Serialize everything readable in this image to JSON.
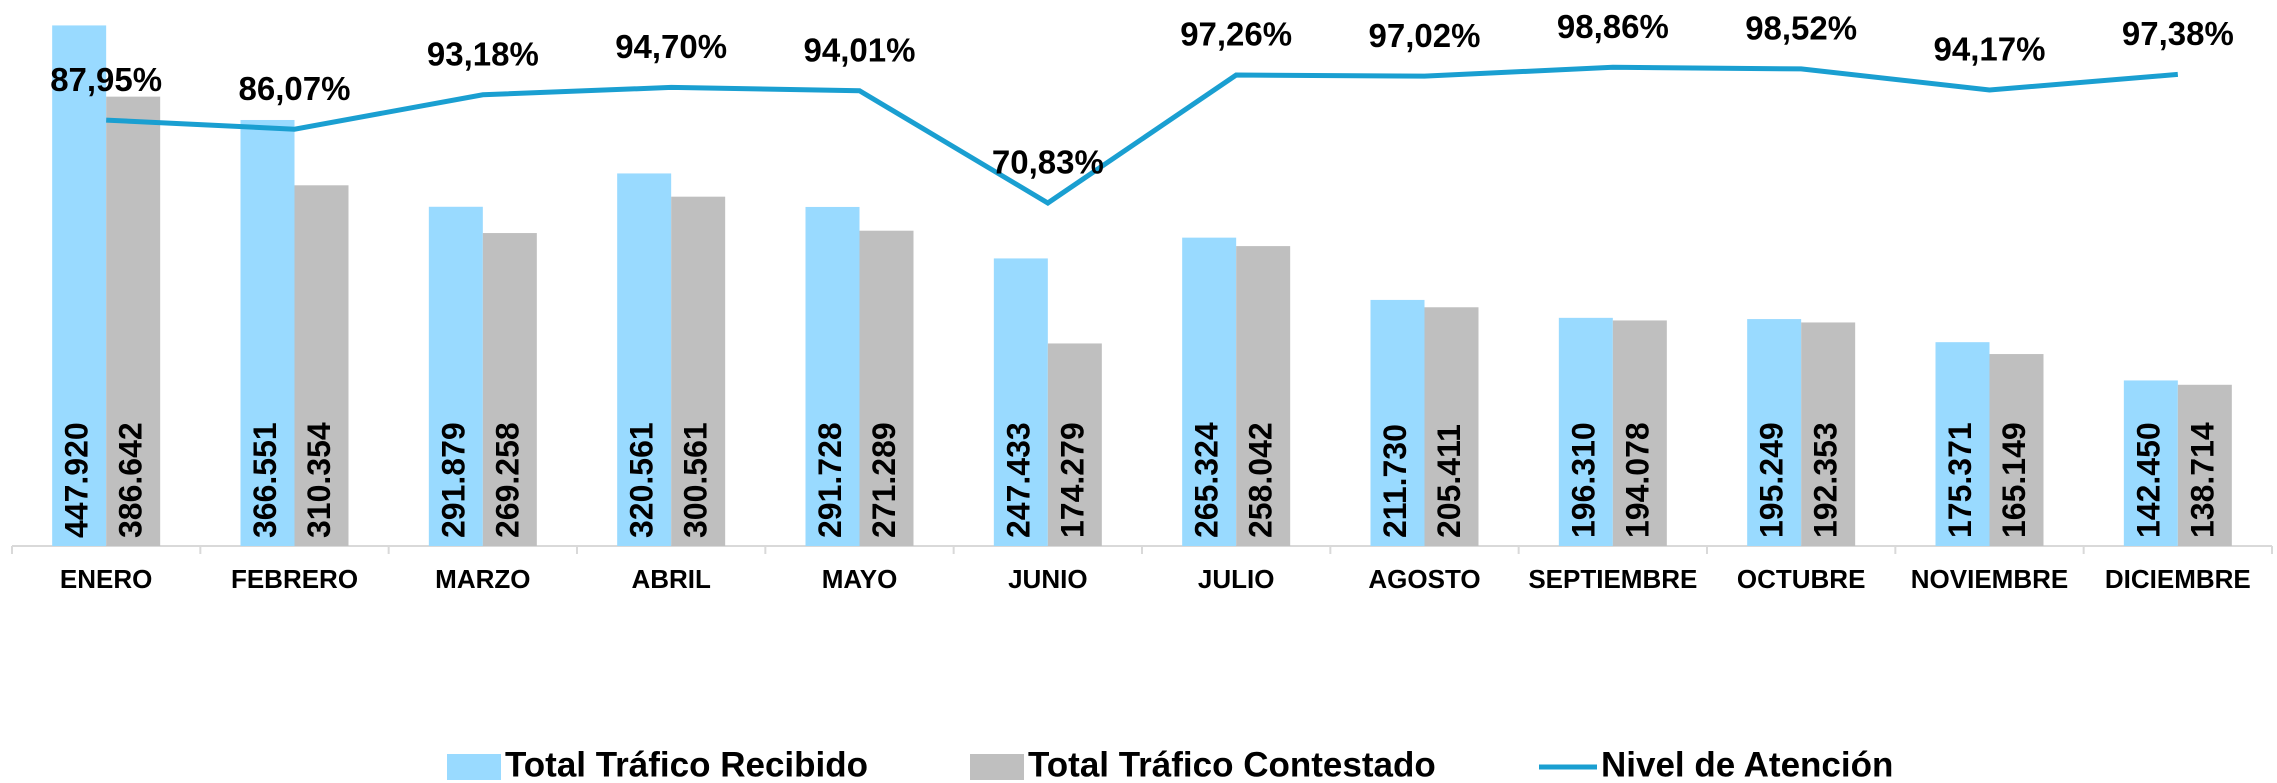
{
  "chart_data": {
    "type": "bar_line",
    "categories": [
      "ENERO",
      "FEBRERO",
      "MARZO",
      "ABRIL",
      "MAYO",
      "JUNIO",
      "JULIO",
      "AGOSTO",
      "SEPTIEMBRE",
      "OCTUBRE",
      "NOVIEMBRE",
      "DICIEMBRE"
    ],
    "series": [
      {
        "name": "Total Tráfico Recibido",
        "type": "bar",
        "color": "#99daff",
        "values": [
          447920,
          366551,
          291879,
          320561,
          291728,
          247433,
          265324,
          211730,
          196310,
          195249,
          175371,
          142450
        ],
        "value_labels": [
          "447.920",
          "366.551",
          "291.879",
          "320.561",
          "291.728",
          "247.433",
          "265.324",
          "211.730",
          "196.310",
          "195.249",
          "175.371",
          "142.450"
        ]
      },
      {
        "name": "Total Tráfico Contestado",
        "type": "bar",
        "color": "#bfbfbf",
        "values": [
          386642,
          310354,
          269258,
          300561,
          271289,
          174279,
          258042,
          205411,
          194078,
          192353,
          165149,
          138714
        ],
        "value_labels": [
          "386.642",
          "310.354",
          "269.258",
          "300.561",
          "271.289",
          "174.279",
          "258.042",
          "205.411",
          "194.078",
          "192.353",
          "165.149",
          "138.714"
        ]
      },
      {
        "name": "Nivel de Atención",
        "type": "line",
        "axis": "y2",
        "color": "#1a9fd1",
        "values": [
          87.95,
          86.07,
          93.18,
          94.7,
          94.01,
          70.83,
          97.26,
          97.02,
          98.86,
          98.52,
          94.17,
          97.38
        ],
        "value_labels": [
          "87,95%",
          "86,07%",
          "93,18%",
          "94,70%",
          "94,01%",
          "70,83%",
          "97,26%",
          "97,02%",
          "98,86%",
          "98,52%",
          "94,17%",
          "97,38%"
        ]
      }
    ],
    "ylim": [
      0,
      450000
    ],
    "y2lim": [
      0,
      108
    ],
    "legend": "bottom"
  }
}
